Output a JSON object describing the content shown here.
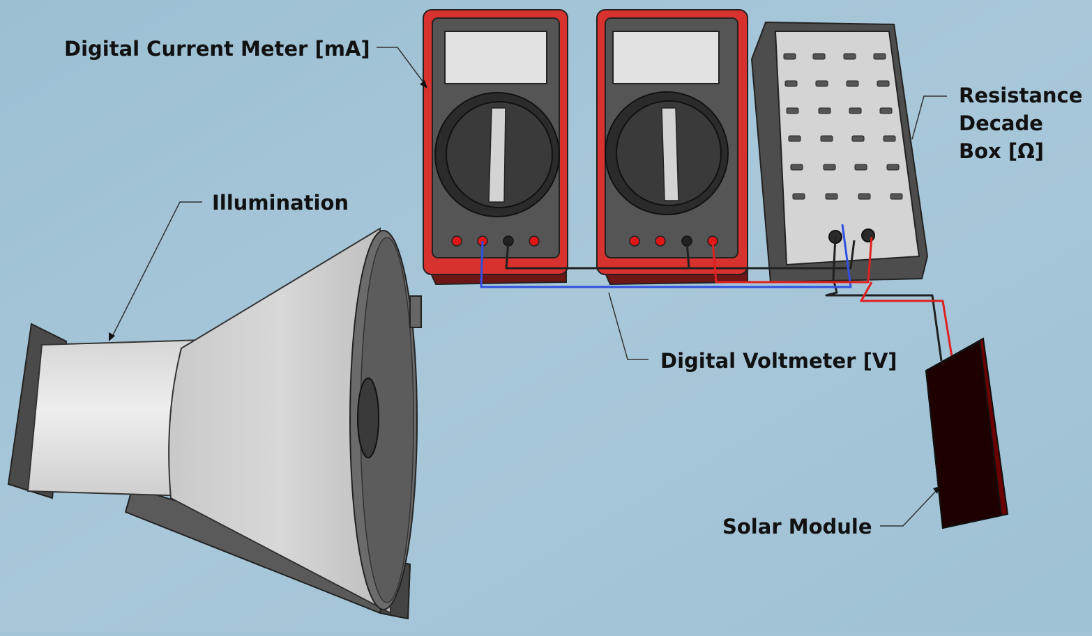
{
  "labels": {
    "current_meter": "Digital Current Meter [mA]",
    "illumination": "Illumination",
    "voltmeter": "Digital Voltmeter [V]",
    "resistance_box": [
      "Resistance",
      "Decade",
      "Box [Ω]"
    ],
    "solar_module": "Solar Module"
  },
  "colors": {
    "background": "#a3c4d6",
    "meter_body": "#d8322e",
    "meter_dark": "#6e1616",
    "meter_face": "#555555",
    "dial": "#2b2b2b",
    "box_panel": "#d4d4d4",
    "lamp": "#e4e4e4",
    "solar_panel": "#1e0000",
    "wire_red": "#e02020",
    "wire_blue": "#3050e0",
    "wire_black": "#202020"
  }
}
